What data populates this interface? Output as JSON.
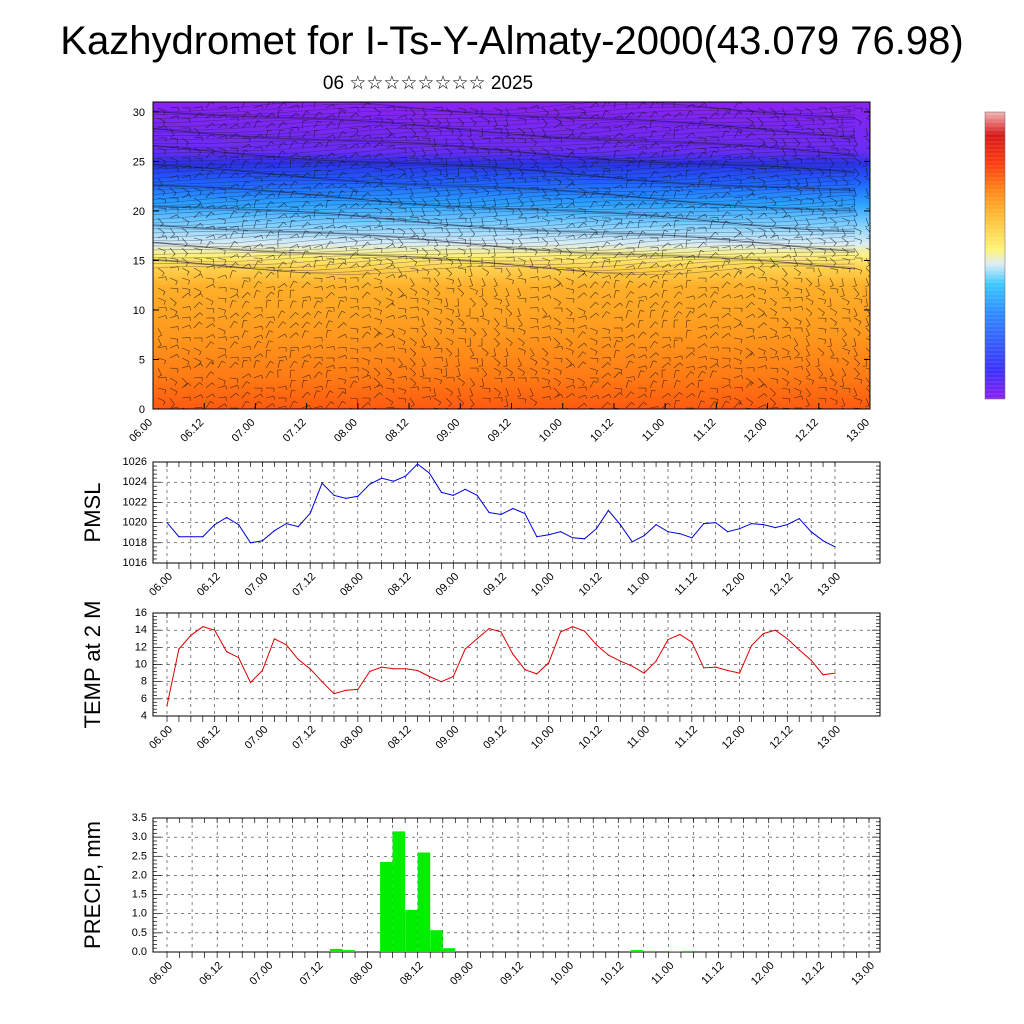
{
  "title": "Kazhydromet for I-Ts-Y-Almaty-2000(43.079 76.98)",
  "subtitle": "06 ☆☆☆☆☆☆☆☆ 2025",
  "colors": {
    "pmsl_line": "#0000dd",
    "temp_line": "#dd0000",
    "precip_bar": "#00ee00",
    "colorbar_stops": [
      "#8a20f0",
      "#3a30ff",
      "#2f8cff",
      "#3cc8ff",
      "#dcecf6",
      "#fff47a",
      "#ffc03a",
      "#ff8c1a",
      "#ff3b10",
      "#d81818",
      "#f0b4b4"
    ]
  },
  "chart_data": [
    {
      "type": "heatmap",
      "name": "cross-section",
      "y_ticks": [
        "0",
        "5",
        "10",
        "15",
        "20",
        "25",
        "30"
      ],
      "ylim": [
        0,
        31
      ],
      "x_ticks": [
        "06.00",
        "06.12",
        "07.00",
        "07.12",
        "08.00",
        "08.12",
        "09.00",
        "09.12",
        "10.00",
        "10.12",
        "11.00",
        "11.12",
        "12.00",
        "12.12",
        "13.00"
      ],
      "color_levels_by_height": {
        "0-5": "orange-red",
        "5-14": "orange",
        "14-17": "yellow",
        "17-22": "light blue",
        "22-26": "blue",
        "26-31": "purple"
      },
      "overlay": "wind barbs"
    },
    {
      "type": "line",
      "ylabel": "PMSL",
      "y_ticks": [
        "1016",
        "1018",
        "1020",
        "1022",
        "1024",
        "1026"
      ],
      "ylim": [
        1016,
        1026
      ],
      "x_ticks": [
        "06.00",
        "06.12",
        "07.00",
        "07.12",
        "08.00",
        "08.12",
        "09.00",
        "09.12",
        "10.00",
        "10.12",
        "11.00",
        "11.12",
        "12.00",
        "12.12",
        "13.00"
      ],
      "step_hours": 3,
      "values": [
        1020.0,
        1018.6,
        1018.6,
        1018.6,
        1019.8,
        1020.5,
        1019.8,
        1018.0,
        1018.2,
        1019.2,
        1019.9,
        1019.6,
        1020.9,
        1023.9,
        1022.7,
        1022.4,
        1022.6,
        1023.8,
        1024.4,
        1024.1,
        1024.6,
        1025.8,
        1024.9,
        1023.0,
        1022.7,
        1023.3,
        1022.7,
        1021.0,
        1020.8,
        1021.4,
        1020.9,
        1018.6,
        1018.8,
        1019.1,
        1018.5,
        1018.4,
        1019.4,
        1021.2,
        1019.8,
        1018.1,
        1018.7,
        1019.8,
        1019.1,
        1018.9,
        1018.5,
        1019.9,
        1020.0,
        1019.1,
        1019.4,
        1019.9,
        1019.8,
        1019.5,
        1019.8,
        1020.4,
        1019.1,
        1018.2,
        1017.6
      ]
    },
    {
      "type": "line",
      "ylabel": "TEMP at 2 M",
      "y_ticks": [
        "4",
        "6",
        "8",
        "10",
        "12",
        "14",
        "16"
      ],
      "ylim": [
        4,
        16
      ],
      "x_ticks": [
        "06.00",
        "06.12",
        "07.00",
        "07.12",
        "08.00",
        "08.12",
        "09.00",
        "09.12",
        "10.00",
        "10.12",
        "11.00",
        "11.12",
        "12.00",
        "12.12",
        "13.00"
      ],
      "step_hours": 3,
      "values": [
        5.2,
        11.8,
        13.4,
        14.4,
        14.0,
        11.5,
        10.8,
        7.9,
        9.3,
        13.0,
        12.3,
        10.6,
        9.5,
        8.0,
        6.6,
        7.0,
        7.1,
        9.2,
        9.7,
        9.5,
        9.5,
        9.3,
        8.6,
        8.0,
        8.6,
        11.8,
        13.0,
        14.2,
        13.8,
        11.2,
        9.4,
        8.9,
        10.2,
        13.8,
        14.4,
        13.9,
        12.3,
        11.1,
        10.4,
        9.8,
        9.0,
        10.4,
        12.9,
        13.5,
        12.6,
        9.6,
        9.7,
        9.3,
        9.0,
        12.2,
        13.6,
        14.0,
        13.0,
        11.7,
        10.5,
        8.8,
        9.0
      ]
    },
    {
      "type": "bar",
      "ylabel": "PRECIP, mm",
      "y_ticks": [
        "0.0",
        "0.5",
        "1.0",
        "1.5",
        "2.0",
        "2.5",
        "3.0",
        "3.5"
      ],
      "ylim": [
        0,
        3.5
      ],
      "x_ticks": [
        "06.00",
        "06.12",
        "07.00",
        "07.12",
        "08.00",
        "08.12",
        "09.00",
        "09.12",
        "10.00",
        "10.12",
        "11.00",
        "11.12",
        "12.00",
        "12.12",
        "13.00"
      ],
      "step_hours": 3,
      "values": [
        0,
        0,
        0,
        0,
        0,
        0,
        0,
        0,
        0,
        0,
        0,
        0,
        0,
        0.08,
        0.05,
        0,
        0,
        2.35,
        3.15,
        1.1,
        2.6,
        0.57,
        0.1,
        0,
        0,
        0,
        0,
        0,
        0,
        0,
        0,
        0,
        0,
        0,
        0,
        0,
        0,
        0.05,
        0.03,
        0,
        0.02,
        0.03,
        0,
        0,
        0,
        0,
        0,
        0,
        0,
        0,
        0,
        0,
        0,
        0,
        0,
        0
      ]
    }
  ]
}
